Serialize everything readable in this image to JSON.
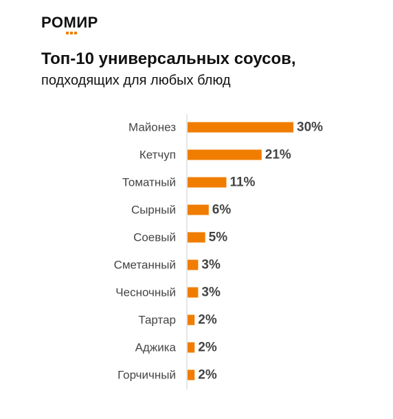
{
  "logo": {
    "text": "РОМИР"
  },
  "header": {
    "title": "Топ-10 универсальных соусов,",
    "subtitle": "подходящих для любых блюд"
  },
  "colors": {
    "bar": "#f07d00",
    "label": "#444444",
    "axis": "#cccccc"
  },
  "chart_data": {
    "type": "bar",
    "orientation": "horizontal",
    "categories": [
      "Майонез",
      "Кетчуп",
      "Томатный",
      "Сырный",
      "Соевый",
      "Сметанный",
      "Чесночный",
      "Тартар",
      "Аджика",
      "Горчичный"
    ],
    "values": [
      30,
      21,
      11,
      6,
      5,
      3,
      3,
      2,
      2,
      2
    ],
    "value_labels": [
      "30%",
      "21%",
      "11%",
      "6%",
      "5%",
      "3%",
      "3%",
      "2%",
      "2%",
      "2%"
    ],
    "unit": "%",
    "xlim": [
      0,
      30
    ],
    "grid": false,
    "legend": "none"
  }
}
